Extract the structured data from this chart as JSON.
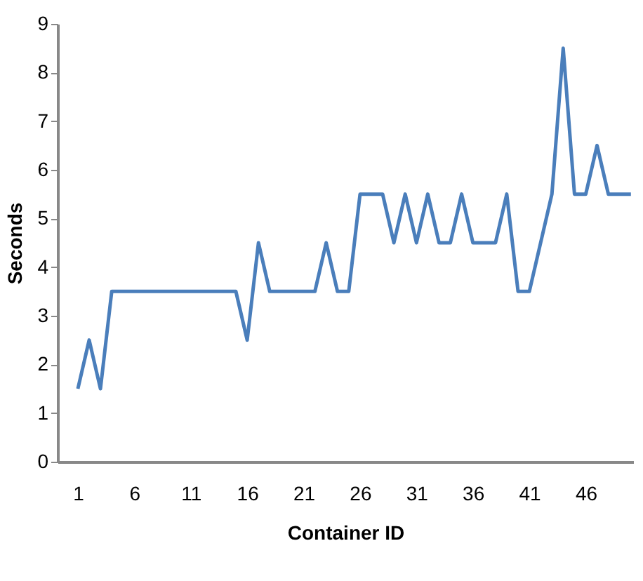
{
  "chart_data": {
    "type": "line",
    "xlabel": "Container ID",
    "ylabel": "Seconds",
    "x": [
      1,
      2,
      3,
      4,
      5,
      6,
      7,
      8,
      9,
      10,
      11,
      12,
      13,
      14,
      15,
      16,
      17,
      18,
      19,
      20,
      21,
      22,
      23,
      24,
      25,
      26,
      27,
      28,
      29,
      30,
      31,
      32,
      33,
      34,
      35,
      36,
      37,
      38,
      39,
      40,
      41,
      42,
      43,
      44,
      45,
      46,
      47,
      48,
      49,
      50
    ],
    "series": [
      {
        "color": "#4a7ebb",
        "values": [
          1.5,
          2.5,
          1.5,
          3.5,
          3.5,
          3.5,
          3.5,
          3.5,
          3.5,
          3.5,
          3.5,
          3.5,
          3.5,
          3.5,
          3.5,
          2.5,
          4.5,
          3.5,
          3.5,
          3.5,
          3.5,
          3.5,
          4.5,
          3.5,
          3.5,
          5.5,
          5.5,
          5.5,
          4.5,
          5.5,
          4.5,
          5.5,
          4.5,
          4.5,
          5.5,
          4.5,
          4.5,
          4.5,
          5.5,
          3.5,
          3.5,
          4.5,
          5.5,
          8.5,
          5.5,
          5.5,
          6.5,
          5.5,
          5.5,
          5.5
        ]
      }
    ],
    "xlim": [
      -0.8,
      50.2
    ],
    "xticks": [
      1,
      6,
      11,
      16,
      21,
      26,
      31,
      36,
      41,
      46
    ],
    "ylim": [
      0,
      9
    ],
    "yticks": [
      0,
      1,
      2,
      3,
      4,
      5,
      6,
      7,
      8,
      9
    ],
    "grid": false,
    "legend": false,
    "marker": "none",
    "line_style": "solid"
  }
}
